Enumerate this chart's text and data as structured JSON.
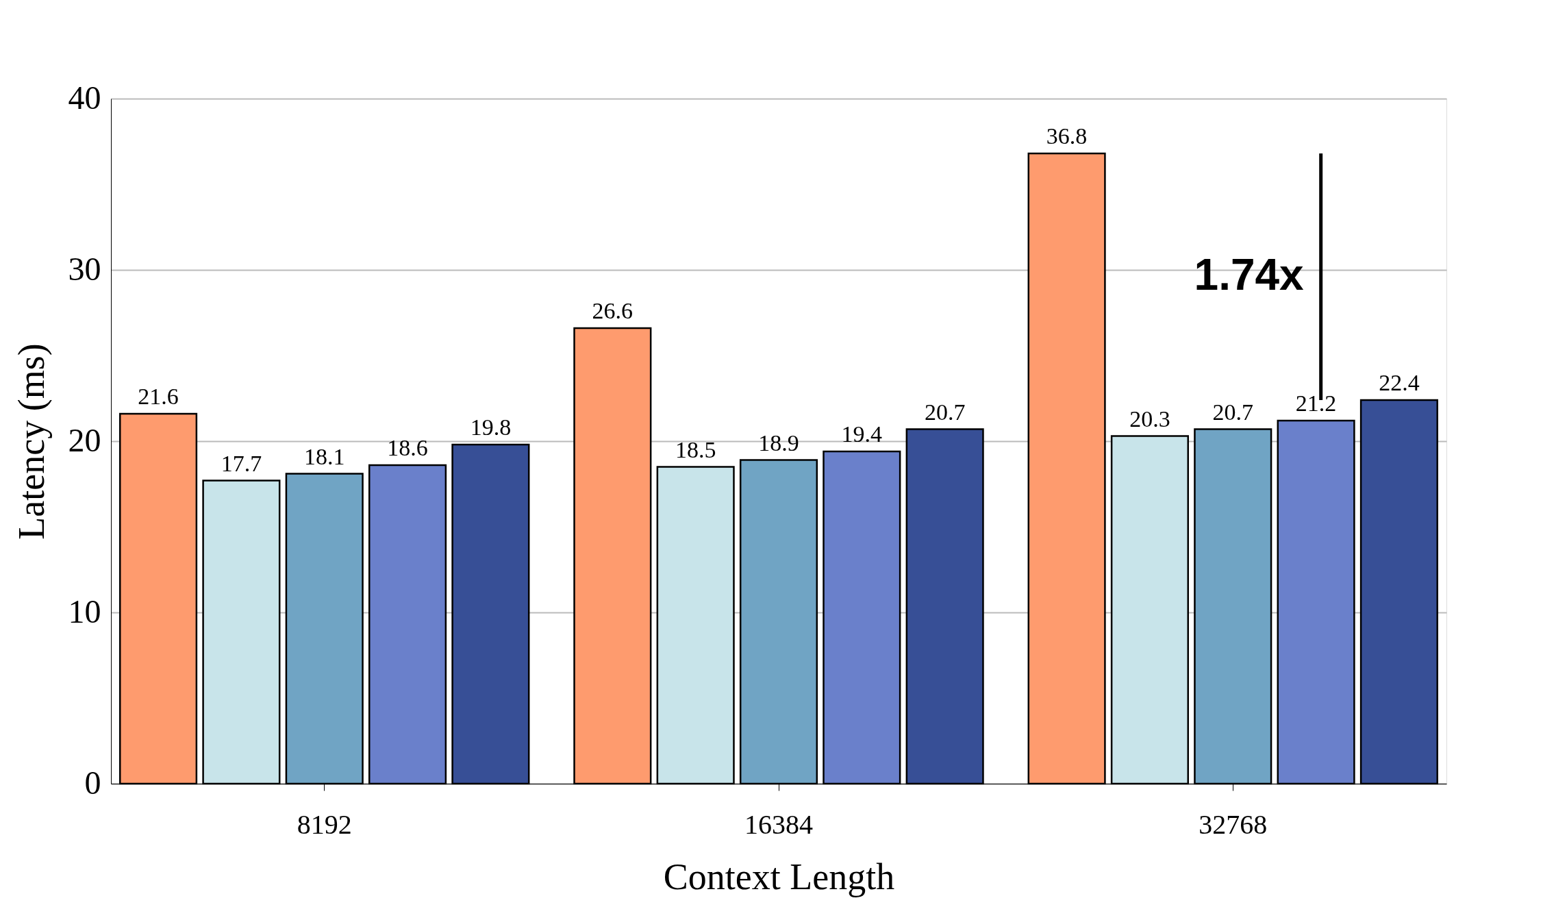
{
  "chart_data": {
    "type": "bar",
    "xlabel": "Context Length",
    "ylabel": "Latency (ms)",
    "categories": [
      "8192",
      "16384",
      "32768"
    ],
    "series": [
      {
        "color": "#fe9b6e",
        "values": [
          21.6,
          26.6,
          36.8
        ]
      },
      {
        "color": "#c8e4ea",
        "values": [
          17.7,
          18.5,
          20.3
        ]
      },
      {
        "color": "#70a4c4",
        "values": [
          18.1,
          18.9,
          20.7
        ]
      },
      {
        "color": "#6a80cb",
        "values": [
          18.6,
          19.4,
          21.2
        ]
      },
      {
        "color": "#374f96",
        "values": [
          19.8,
          20.7,
          22.4
        ]
      }
    ],
    "ylim": [
      0,
      40
    ],
    "yticks": [
      0,
      10,
      20,
      30,
      40
    ],
    "grid": "y",
    "data_labels": true,
    "annotations": [
      "1.74x"
    ]
  }
}
